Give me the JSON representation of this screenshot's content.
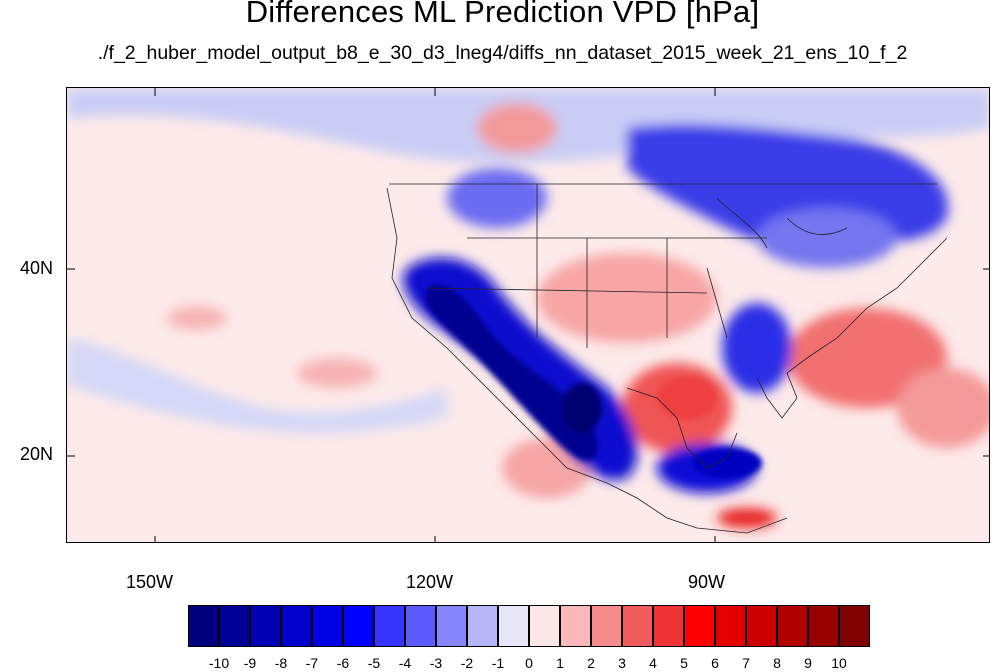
{
  "title": "Differences ML Prediction VPD [hPa]",
  "subtitle": "./f_2_huber_model_output_b8_e_30_d3_lneg4/diffs_nn_dataset_2015_week_21_ens_10_f_2",
  "axes": {
    "lon_labels": [
      "150W",
      "120W",
      "90W"
    ],
    "lat_labels": [
      "40N",
      "20N"
    ]
  },
  "colorbar": {
    "labels": [
      "-10",
      "-9",
      "-8",
      "-7",
      "-6",
      "-5",
      "-4",
      "-3",
      "-2",
      "-1",
      "0",
      "1",
      "2",
      "3",
      "4",
      "5",
      "6",
      "7",
      "8",
      "9",
      "10"
    ],
    "colors": [
      "#00007f",
      "#000099",
      "#0000b2",
      "#0000cc",
      "#0000e5",
      "#0000ff",
      "#3535ff",
      "#5b5bff",
      "#8585ff",
      "#b5b5f8",
      "#e6e6f8",
      "#fde6e6",
      "#fbb8b8",
      "#f88b8b",
      "#f25b5b",
      "#f23333",
      "#ff0000",
      "#e50000",
      "#cc0000",
      "#b20000",
      "#990000",
      "#7f0000"
    ]
  },
  "map": {
    "lon_range": [
      "160W",
      "60W"
    ],
    "lat_range": [
      "10N",
      "58N"
    ]
  }
}
